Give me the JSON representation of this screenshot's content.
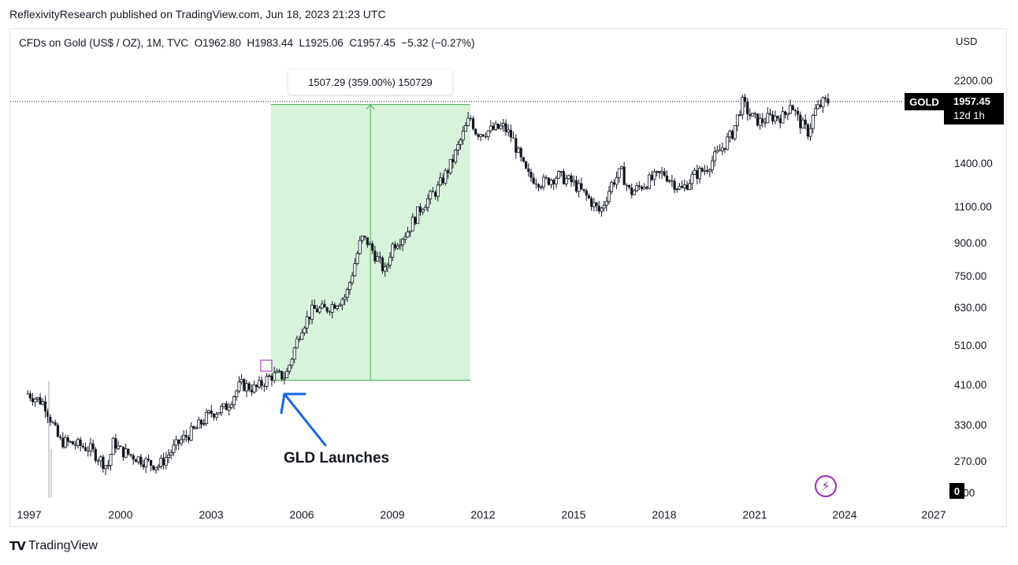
{
  "header": {
    "published": "ReflexivityResearch published on TradingView.com, Jun 18, 2023 21:23 UTC"
  },
  "legend": {
    "symbol": "CFDs on Gold (US$ / OZ), 1M, TVC",
    "open_label": "O",
    "open": "1962.80",
    "high_label": "H",
    "high": "1983.44",
    "low_label": "L",
    "low": "1925.06",
    "close_label": "C",
    "close": "1957.45",
    "change": "−5.32 (−0.27%)"
  },
  "price_axis": {
    "currency": "USD",
    "ticks": [
      "2200.00",
      "1400.00",
      "1100.00",
      "900.00",
      "750.00",
      "630.00",
      "510.00",
      "410.00",
      "330.00",
      "270.00",
      "6.00"
    ]
  },
  "time_axis": {
    "ticks": [
      "1997",
      "2000",
      "2003",
      "2006",
      "2009",
      "2012",
      "2015",
      "2018",
      "2021",
      "2024",
      "2027"
    ]
  },
  "badges": {
    "symbol": "GOLD",
    "last_price": "1957.45",
    "countdown": "12d 1h",
    "zero": "0"
  },
  "measure": {
    "label": "1507.29 (359.00%) 150729",
    "start_date": "2005.0",
    "end_date": "2011.6",
    "start_price": 420,
    "end_price": 1925
  },
  "annotation": {
    "text": "GLD Launches"
  },
  "footer": {
    "brand": "TradingView"
  },
  "colors": {
    "up": "#131722",
    "down": "#131722",
    "measure_fill": "#d8f2dc",
    "measure_line": "#4caf50",
    "arrow": "#1565e8",
    "marker": "#9c27b0"
  },
  "chart_data": {
    "type": "candlestick",
    "scale": "log",
    "ylim": [
      232,
      2330
    ],
    "xlim": [
      1996.95,
      2027.6
    ],
    "x": [
      1996.95,
      1997.5,
      1998.0,
      1998.5,
      1999.0,
      1999.6,
      1999.8,
      2000.0,
      2000.5,
      2001.0,
      2001.3,
      2002.0,
      2002.5,
      2003.0,
      2003.5,
      2004.0,
      2004.5,
      2005.0,
      2005.5,
      2006.0,
      2006.4,
      2006.8,
      2007.5,
      2008.0,
      2008.2,
      2008.8,
      2009.0,
      2009.5,
      2010.0,
      2010.5,
      2011.0,
      2011.6,
      2011.8,
      2012.0,
      2012.7,
      2013.0,
      2013.3,
      2013.5,
      2014.0,
      2014.5,
      2015.0,
      2015.5,
      2015.9,
      2016.3,
      2016.6,
      2016.9,
      2017.5,
      2018.0,
      2018.6,
      2019.0,
      2019.4,
      2019.9,
      2020.3,
      2020.6,
      2020.9,
      2021.2,
      2021.6,
      2022.0,
      2022.2,
      2022.5,
      2022.8,
      2023.0,
      2023.3,
      2023.45
    ],
    "close": [
      390,
      370,
      300,
      295,
      288,
      260,
      300,
      285,
      275,
      265,
      262,
      300,
      320,
      350,
      360,
      410,
      400,
      430,
      430,
      560,
      620,
      620,
      670,
      920,
      900,
      760,
      880,
      950,
      1100,
      1200,
      1400,
      1800,
      1650,
      1650,
      1700,
      1600,
      1400,
      1300,
      1250,
      1300,
      1250,
      1150,
      1060,
      1250,
      1330,
      1180,
      1260,
      1320,
      1200,
      1300,
      1350,
      1500,
      1650,
      1950,
      1800,
      1750,
      1800,
      1800,
      1950,
      1750,
      1650,
      1850,
      1950,
      1957
    ],
    "high_low_range": [
      1925.06,
      1983.44
    ]
  }
}
